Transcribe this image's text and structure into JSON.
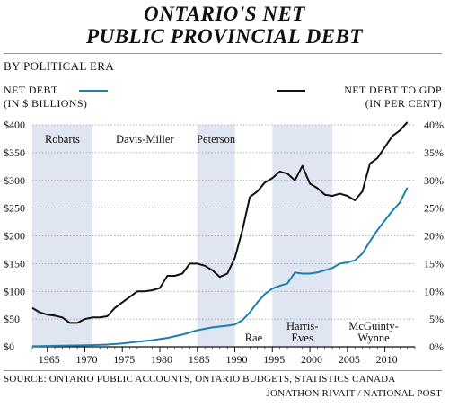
{
  "title_line1": "ONTARIO'S NET",
  "title_line2": "PUBLIC PROVINCIAL DEBT",
  "subtitle": "BY POLITICAL ERA",
  "legend": {
    "left_line1": "NET DEBT",
    "left_line2": "(IN $ BILLIONS)",
    "right_line1": "NET DEBT TO GDP",
    "right_line2": "(IN PER CENT)",
    "left_color": "#1c7fb1",
    "right_color": "#111111"
  },
  "source_line1": "SOURCE: ONTARIO PUBLIC ACCOUNTS, ONTARIO BUDGETS, STATISTICS CANADA",
  "source_line2": "JONATHON RIVAIT / NATIONAL POST",
  "chart_data": {
    "type": "line",
    "x_ticks": [
      1965,
      1970,
      1975,
      1980,
      1985,
      1990,
      1995,
      2000,
      2005,
      2010
    ],
    "xlim": [
      1963,
      2014
    ],
    "y_left": {
      "ticks": [
        "$0",
        "$50",
        "$100",
        "$150",
        "$200",
        "$250",
        "$300",
        "$350",
        "$400"
      ],
      "lim": [
        0,
        400
      ]
    },
    "y_right": {
      "ticks": [
        "0%",
        "5%",
        "10%",
        "15%",
        "20%",
        "25%",
        "30%",
        "35%",
        "40%"
      ],
      "lim": [
        0,
        40
      ]
    },
    "grid": true,
    "eras": [
      {
        "label": "Robarts",
        "start": 1963,
        "end": 1971,
        "shaded": true,
        "label_pos": "top"
      },
      {
        "label": "Davis-Miller",
        "start": 1971,
        "end": 1985,
        "shaded": false,
        "label_pos": "top"
      },
      {
        "label": "Peterson",
        "start": 1985,
        "end": 1990,
        "shaded": true,
        "label_pos": "top"
      },
      {
        "label": "Rae",
        "start": 1990,
        "end": 1995,
        "shaded": false,
        "label_pos": "bottom"
      },
      {
        "label": "Harris-\nEves",
        "start": 1995,
        "end": 2003,
        "shaded": true,
        "label_pos": "bottom"
      },
      {
        "label": "McGuinty-\nWynne",
        "start": 2003,
        "end": 2014,
        "shaded": false,
        "label_pos": "bottom"
      }
    ],
    "series": [
      {
        "axis": "left",
        "color": "#1c7fb1",
        "x": [
          1963,
          1965,
          1967,
          1969,
          1971,
          1973,
          1975,
          1977,
          1979,
          1981,
          1983,
          1985,
          1987,
          1989,
          1990,
          1991,
          1992,
          1993,
          1994,
          1995,
          1996,
          1997,
          1998,
          1999,
          2000,
          2001,
          2002,
          2003,
          2004,
          2005,
          2006,
          2007,
          2008,
          2009,
          2010,
          2011,
          2012,
          2013
        ],
        "values": [
          1,
          1.5,
          2,
          2.5,
          3,
          4,
          6,
          9,
          12,
          16,
          22,
          30,
          35,
          38,
          40,
          48,
          62,
          80,
          95,
          105,
          110,
          114,
          134,
          132,
          132,
          134,
          138,
          142,
          150,
          152,
          156,
          168,
          190,
          210,
          228,
          245,
          260,
          287
        ]
      },
      {
        "axis": "right",
        "color": "#111111",
        "x": [
          1963,
          1964,
          1965,
          1966,
          1967,
          1968,
          1969,
          1970,
          1971,
          1972,
          1973,
          1974,
          1975,
          1976,
          1977,
          1978,
          1979,
          1980,
          1981,
          1982,
          1983,
          1984,
          1985,
          1986,
          1987,
          1988,
          1989,
          1990,
          1991,
          1992,
          1993,
          1994,
          1995,
          1996,
          1997,
          1998,
          1999,
          2000,
          2001,
          2002,
          2003,
          2004,
          2005,
          2006,
          2007,
          2008,
          2009,
          2010,
          2011,
          2012,
          2013
        ],
        "values": [
          7,
          6.2,
          5.8,
          5.6,
          5.3,
          4.3,
          4.3,
          5,
          5.3,
          5.3,
          5.5,
          7,
          8,
          9,
          10,
          10,
          10.2,
          10.6,
          12.8,
          12.8,
          13.2,
          15,
          15,
          14.6,
          13.8,
          12.6,
          13.2,
          16,
          21,
          27,
          28,
          29.6,
          30.4,
          31.6,
          31.2,
          30,
          32.6,
          29.4,
          28.6,
          27.4,
          27.2,
          27.6,
          27.2,
          26.4,
          28,
          33,
          34,
          36,
          38,
          39,
          40.5
        ]
      }
    ]
  }
}
